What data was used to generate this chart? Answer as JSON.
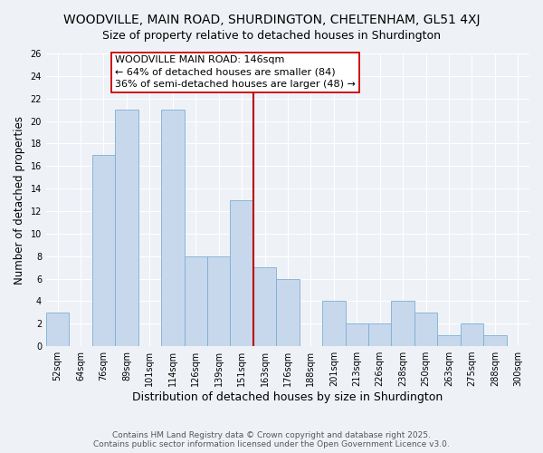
{
  "title": "WOODVILLE, MAIN ROAD, SHURDINGTON, CHELTENHAM, GL51 4XJ",
  "subtitle": "Size of property relative to detached houses in Shurdington",
  "xlabel": "Distribution of detached houses by size in Shurdington",
  "ylabel": "Number of detached properties",
  "categories": [
    "52sqm",
    "64sqm",
    "76sqm",
    "89sqm",
    "101sqm",
    "114sqm",
    "126sqm",
    "139sqm",
    "151sqm",
    "163sqm",
    "176sqm",
    "188sqm",
    "201sqm",
    "213sqm",
    "226sqm",
    "238sqm",
    "250sqm",
    "263sqm",
    "275sqm",
    "288sqm",
    "300sqm"
  ],
  "values": [
    3,
    0,
    17,
    21,
    0,
    21,
    8,
    8,
    13,
    7,
    6,
    0,
    4,
    2,
    2,
    4,
    3,
    1,
    2,
    1,
    0
  ],
  "bar_color": "#c8d8ec",
  "bar_edge_color": "#7bafd4",
  "vline_color": "#bb0000",
  "annotation_line1": "WOODVILLE MAIN ROAD: 146sqm",
  "annotation_line2": "← 64% of detached houses are smaller (84)",
  "annotation_line3": "36% of semi-detached houses are larger (48) →",
  "annotation_box_color": "#ffffff",
  "annotation_box_edge": "#cc0000",
  "ylim": [
    0,
    26
  ],
  "yticks": [
    0,
    2,
    4,
    6,
    8,
    10,
    12,
    14,
    16,
    18,
    20,
    22,
    24,
    26
  ],
  "footer": "Contains HM Land Registry data © Crown copyright and database right 2025.\nContains public sector information licensed under the Open Government Licence v3.0.",
  "background_color": "#eef2f7",
  "grid_color": "#ffffff",
  "title_fontsize": 10,
  "subtitle_fontsize": 9,
  "xlabel_fontsize": 9,
  "ylabel_fontsize": 8.5,
  "footer_fontsize": 6.5,
  "annot_fontsize": 8,
  "tick_fontsize": 7
}
